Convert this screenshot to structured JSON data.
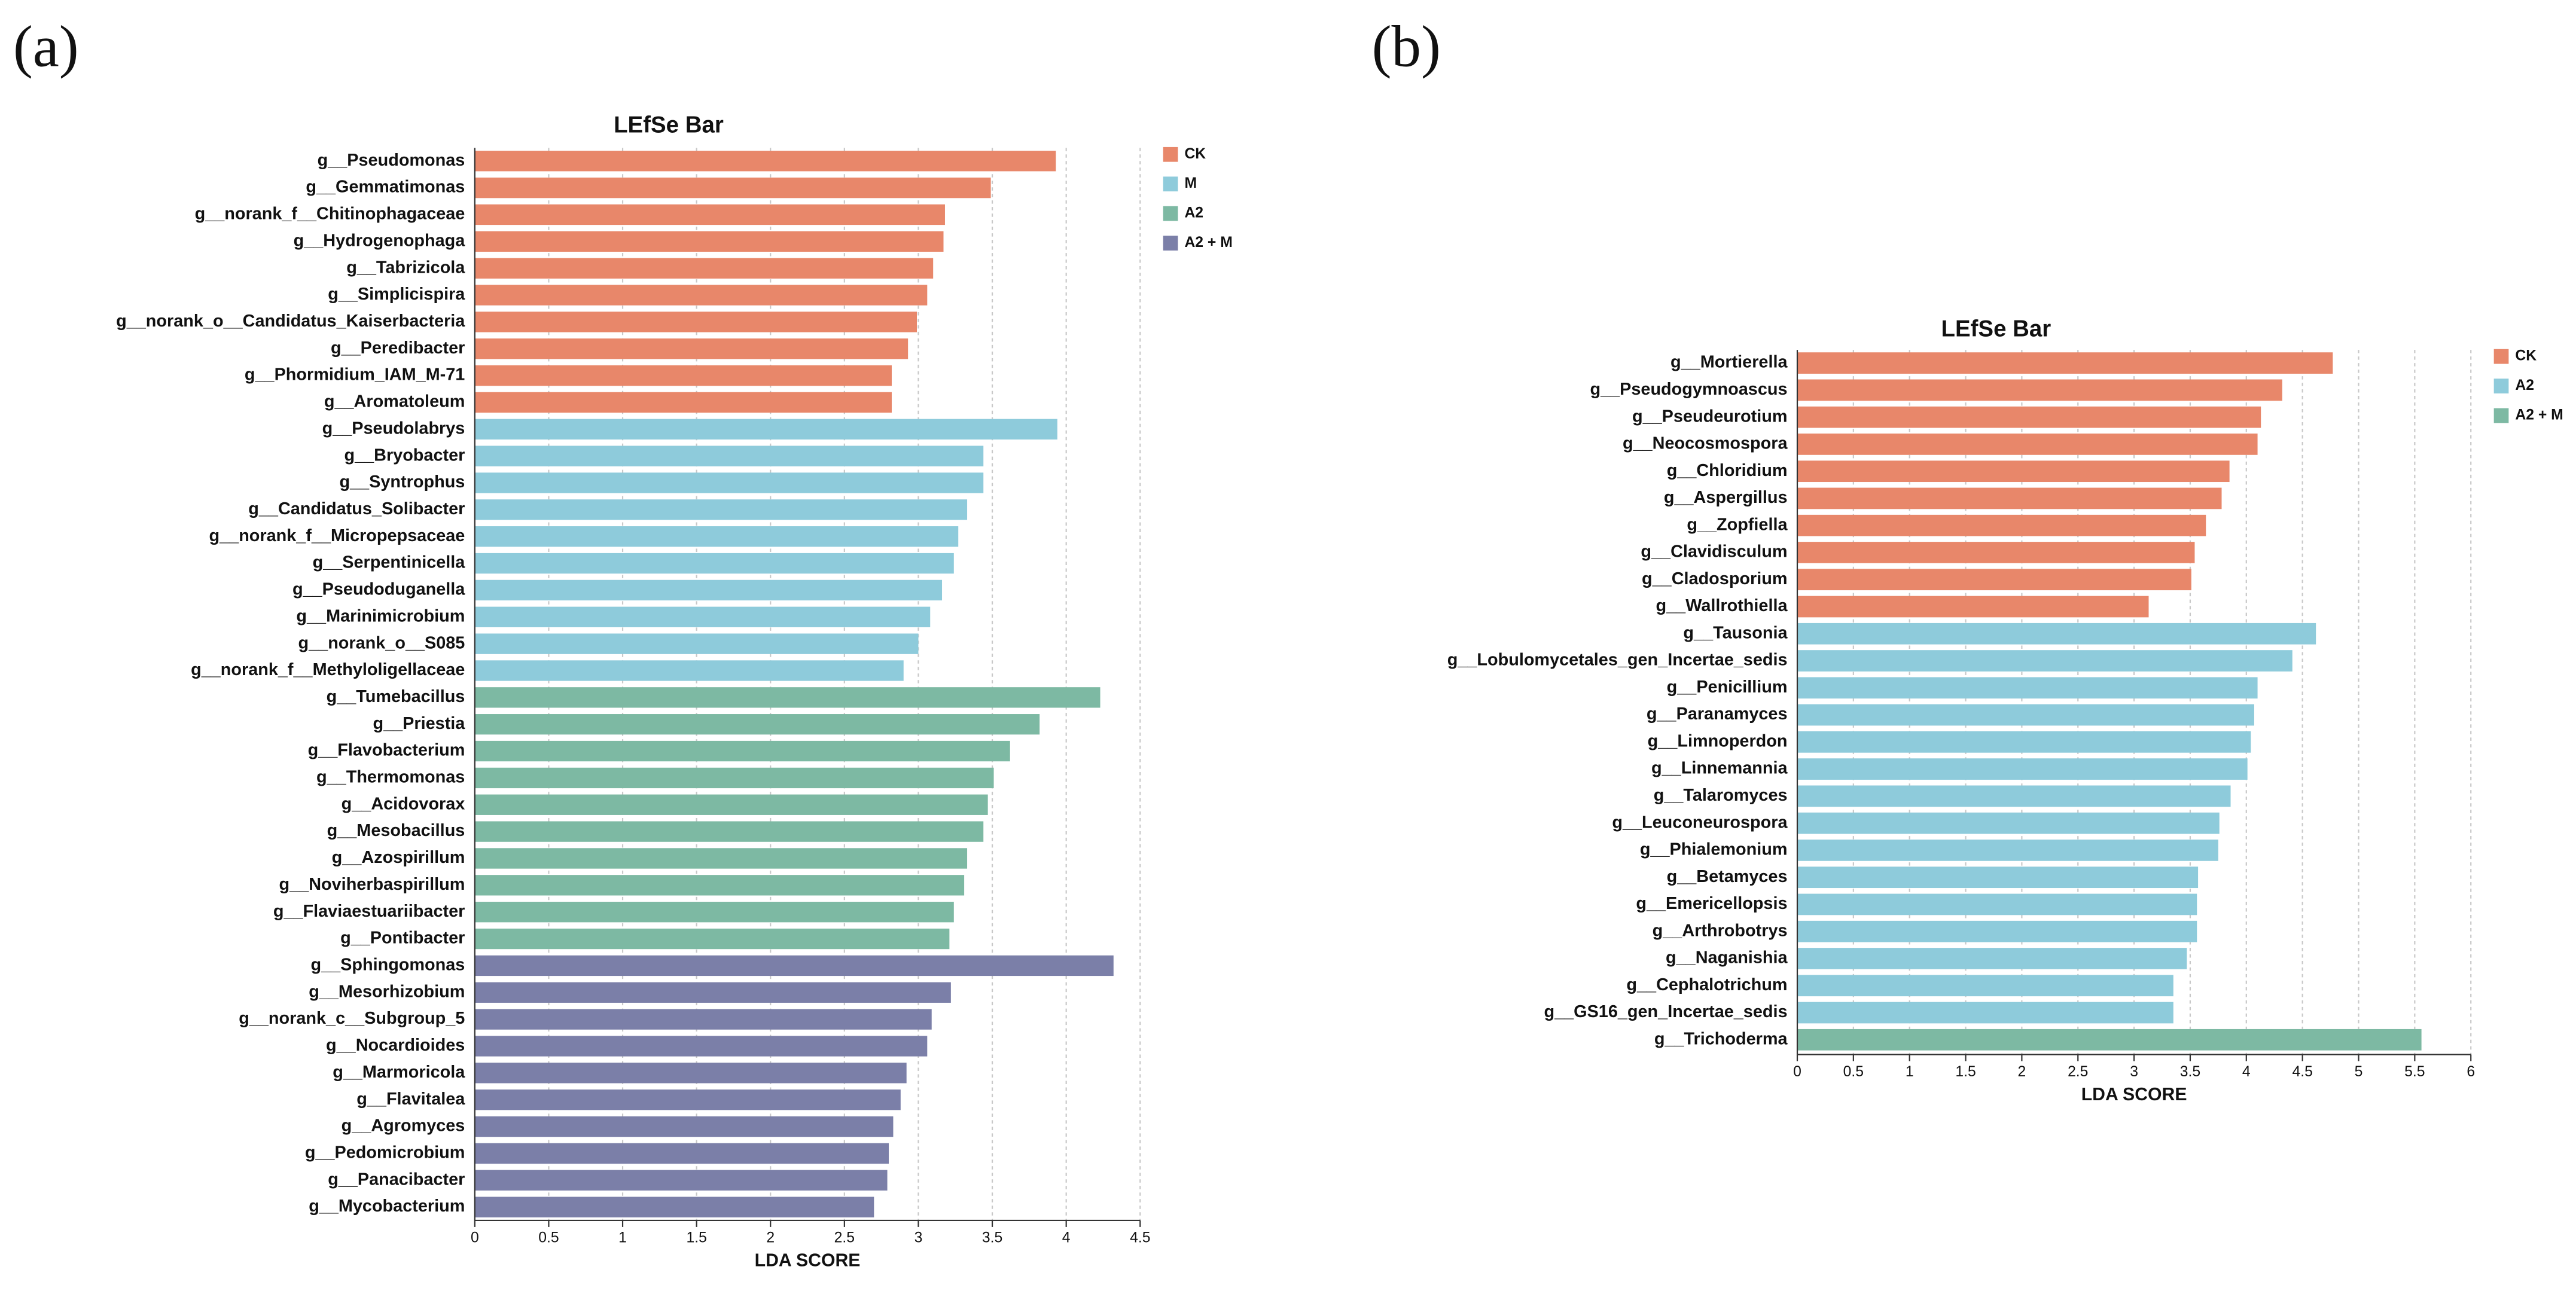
{
  "chart_data": [
    {
      "type": "bar",
      "label": "(a)",
      "title": "LEfSe Bar",
      "xlabel": "LDA SCORE",
      "xlim": [
        0,
        4.5
      ],
      "xticks": [
        0,
        0.5,
        1,
        1.5,
        2,
        2.5,
        3,
        3.5,
        4,
        4.5
      ],
      "grid": true,
      "legend": "upper right",
      "series": [
        {
          "name": "CK",
          "color": "#e8876a",
          "categories": [
            "g__Pseudomonas",
            "g__Gemmatimonas",
            "g__norank_f__Chitinophagaceae",
            "g__Hydrogenophaga",
            "g__Tabrizicola",
            "g__Simplicispira",
            "g__norank_o__Candidatus_Kaiserbacteria",
            "g__Peredibacter",
            "g__Phormidium_IAM_M-71",
            "g__Aromatoleum"
          ],
          "values": [
            3.93,
            3.49,
            3.18,
            3.17,
            3.1,
            3.06,
            2.99,
            2.93,
            2.82,
            2.82
          ]
        },
        {
          "name": "M",
          "color": "#8ecbdb",
          "categories": [
            "g__Pseudolabrys",
            "g__Bryobacter",
            "g__Syntrophus",
            "g__Candidatus_Solibacter",
            "g__norank_f__Micropepsaceae",
            "g__Serpentinicella",
            "g__Pseudoduganella",
            "g__Marinimicrobium",
            "g__norank_o__S085",
            "g__norank_f__Methyloligellaceae"
          ],
          "values": [
            3.94,
            3.44,
            3.44,
            3.33,
            3.27,
            3.24,
            3.16,
            3.08,
            3.0,
            2.9
          ]
        },
        {
          "name": "A2",
          "color": "#7db9a3",
          "categories": [
            "g__Tumebacillus",
            "g__Priestia",
            "g__Flavobacterium",
            "g__Thermomonas",
            "g__Acidovorax",
            "g__Mesobacillus",
            "g__Azospirillum",
            "g__Noviherbaspirillum",
            "g__Flaviaestuariibacter",
            "g__Pontibacter"
          ],
          "values": [
            4.23,
            3.82,
            3.62,
            3.51,
            3.47,
            3.44,
            3.33,
            3.31,
            3.24,
            3.21
          ]
        },
        {
          "name": "A2 + M",
          "color": "#7b7fa8",
          "categories": [
            "g__Sphingomonas",
            "g__Mesorhizobium",
            "g__norank_c__Subgroup_5",
            "g__Nocardioides",
            "g__Marmoricola",
            "g__Flavitalea",
            "g__Agromyces",
            "g__Pedomicrobium",
            "g__Panacibacter",
            "g__Mycobacterium"
          ],
          "values": [
            4.32,
            3.22,
            3.09,
            3.06,
            2.92,
            2.88,
            2.83,
            2.8,
            2.79,
            2.7
          ]
        }
      ]
    },
    {
      "type": "bar",
      "label": "(b)",
      "title": "LEfSe Bar",
      "xlabel": "LDA SCORE",
      "xlim": [
        0,
        6
      ],
      "xticks": [
        0,
        0.5,
        1,
        1.5,
        2,
        2.5,
        3,
        3.5,
        4,
        4.5,
        5,
        5.5,
        6
      ],
      "grid": true,
      "legend": "upper right",
      "series": [
        {
          "name": "CK",
          "color": "#e8876a",
          "categories": [
            "g__Mortierella",
            "g__Pseudogymnoascus",
            "g__Pseudeurotium",
            "g__Neocosmospora",
            "g__Chloridium",
            "g__Aspergillus",
            "g__Zopfiella",
            "g__Clavidisculum",
            "g__Cladosporium",
            "g__Wallrothiella"
          ],
          "values": [
            4.77,
            4.32,
            4.13,
            4.1,
            3.85,
            3.78,
            3.64,
            3.54,
            3.51,
            3.13
          ]
        },
        {
          "name": "A2",
          "color": "#8ecbdb",
          "categories": [
            "g__Tausonia",
            "g__Lobulomycetales_gen_Incertae_sedis",
            "g__Penicillium",
            "g__Paranamyces",
            "g__Limnoperdon",
            "g__Linnemannia",
            "g__Talaromyces",
            "g__Leuconeurospora",
            "g__Phialemonium",
            "g__Betamyces",
            "g__Emericellopsis",
            "g__Arthrobotrys",
            "g__Naganishia",
            "g__Cephalotrichum",
            "g__GS16_gen_Incertae_sedis"
          ],
          "values": [
            4.62,
            4.41,
            4.1,
            4.07,
            4.04,
            4.01,
            3.86,
            3.76,
            3.75,
            3.57,
            3.56,
            3.56,
            3.47,
            3.35,
            3.35
          ]
        },
        {
          "name": "A2 + M",
          "color": "#7db9a3",
          "categories": [
            "g__Trichoderma"
          ],
          "values": [
            5.56
          ]
        }
      ]
    }
  ]
}
